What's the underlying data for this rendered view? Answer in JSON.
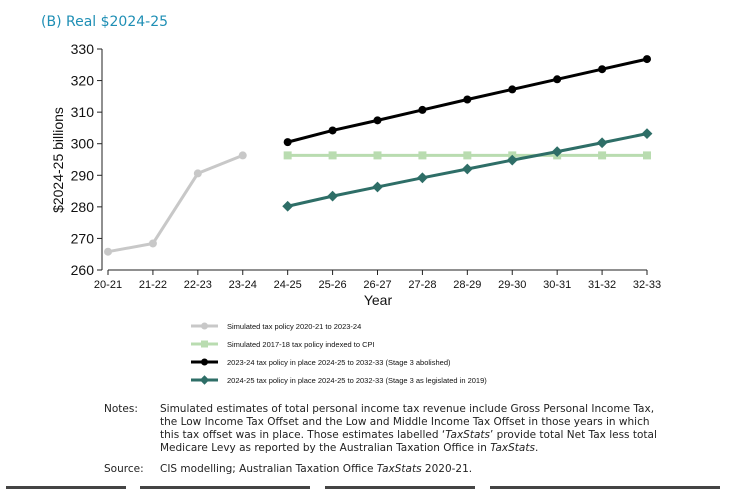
{
  "panel_title": "(B) Real $2024-25",
  "chart_data": {
    "type": "line",
    "title": "",
    "xlabel": "Year",
    "ylabel": "$2024-25 billions",
    "categories": [
      "20-21",
      "21-22",
      "22-23",
      "23-24",
      "24-25",
      "25-26",
      "26-27",
      "27-28",
      "28-29",
      "29-30",
      "30-31",
      "31-32",
      "32-33"
    ],
    "ylim": [
      260,
      330
    ],
    "yticks": [
      260,
      270,
      280,
      290,
      300,
      310,
      320,
      330
    ],
    "grid": false,
    "legend_position": "bottom",
    "series": [
      {
        "name": "Simulated tax policy 2020-21 to 2023-24",
        "color": "#c8c8c8",
        "marker": "circle",
        "values": [
          265.8,
          268.4,
          290.6,
          296.3,
          null,
          null,
          null,
          null,
          null,
          null,
          null,
          null,
          null
        ]
      },
      {
        "name": "Simulated 2017-18 tax policy indexed to CPI",
        "color": "#b9dcb0",
        "marker": "square",
        "values": [
          null,
          null,
          null,
          null,
          296.3,
          296.3,
          296.3,
          296.3,
          296.3,
          296.3,
          296.3,
          296.3,
          296.3
        ]
      },
      {
        "name": "2023-24 tax policy in place 2024-25 to 2032-33 (Stage 3 abolished)",
        "color": "#000000",
        "marker": "circle",
        "values": [
          null,
          null,
          null,
          null,
          300.5,
          304.2,
          307.4,
          310.7,
          314.0,
          317.2,
          320.4,
          323.6,
          326.8
        ]
      },
      {
        "name": "2024-25 tax policy in place 2024-25 to 2032-33 (Stage 3 as legislated in 2019)",
        "color": "#2e6e67",
        "marker": "diamond",
        "values": [
          null,
          null,
          null,
          null,
          280.2,
          283.4,
          286.3,
          289.2,
          292.0,
          294.8,
          297.5,
          300.3,
          303.2
        ]
      }
    ]
  },
  "notes": {
    "notes_label": "Notes:",
    "notes_line1": "Simulated estimates of total personal income tax revenue include Gross Personal Income Tax,",
    "notes_line2": "the Low Income Tax Offset and the Low and Middle Income Tax Offset in those years in which",
    "notes_line3a": "this tax offset was in place. Those estimates labelled ‘",
    "notes_line3_em": "TaxStats",
    "notes_line3b": "’ provide total Net Tax less total",
    "notes_line4a": "Medicare Levy as reported by the Australian Taxation Office in ",
    "notes_line4_em": "TaxStats",
    "notes_line4b": ".",
    "source_label": "Source:",
    "source_a": "CIS modelling; Australian Taxation Office ",
    "source_em": "TaxStats",
    "source_b": " 2020-21."
  }
}
